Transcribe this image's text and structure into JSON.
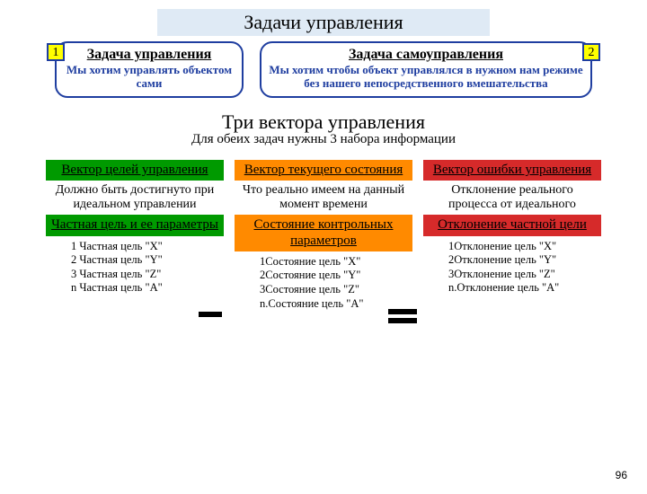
{
  "title": {
    "text": "Задачи управления",
    "bg": "#dfeaf5"
  },
  "tasks": {
    "left": {
      "num": "1",
      "title": "Задача управления",
      "sub": "Мы хотим управлять объектом сами"
    },
    "right": {
      "num": "2",
      "title": "Задача самоуправления",
      "sub": "Мы хотим чтобы объект управлялся в нужном нам режиме без нашего непосредственного вмешательства"
    },
    "border": "#1f3ea0",
    "badge_bg": "#ffff00"
  },
  "section": {
    "title": "Три вектора управления",
    "sub": "Для обеих задач нужны 3 набора информации"
  },
  "columns": [
    {
      "color": "#009a00",
      "h1": "Вектор целей управления",
      "p1": "Должно быть достигнуто при идеальном управлении",
      "h2": "Частная цель и ее параметры",
      "list": [
        "1 Частная цель \"X\"",
        "2 Частная цель \"Y\"",
        "3 Частная цель \"Z\"",
        "n Частная цель \"A\""
      ]
    },
    {
      "color": "#ff8a00",
      "h1": "Вектор текущего состояния",
      "p1": "Что реально имеем на данный момент времени",
      "h2": "Состояние контрольных параметров",
      "list": [
        "1Состояние цель \"X\"",
        "2Состояние цель \"Y\"",
        "3Состояние цель \"Z\"",
        "n.Состояние цель \"A\""
      ]
    },
    {
      "color": "#d62a2a",
      "h1": "Вектор ошибки управления",
      "p1": "Отклонение реального процесса от идеального",
      "h2": "Отклонение частной цели",
      "list": [
        "1Отклонение цель \"X\"",
        "2Отклонение цель \"Y\"",
        "3Отклонение цель \"Z\"",
        "n.Отклонение цель \"A\""
      ]
    }
  ],
  "page_num": "96"
}
